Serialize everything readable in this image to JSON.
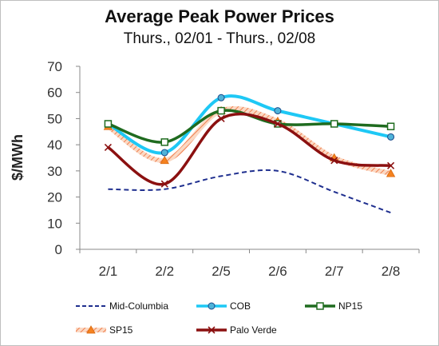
{
  "chart_data": {
    "type": "line",
    "title": "Average Peak Power Prices",
    "subtitle": "Thurs., 02/01 - Thurs., 02/08",
    "xlabel": "",
    "ylabel": "$/MWh",
    "categories": [
      "2/1",
      "2/2",
      "2/5",
      "2/6",
      "2/7",
      "2/8"
    ],
    "ylim": [
      0,
      70
    ],
    "yticks": [
      0,
      10,
      20,
      30,
      40,
      50,
      60,
      70
    ],
    "grid": false,
    "legend_position": "bottom",
    "series": [
      {
        "name": "Mid-Columbia",
        "values": [
          23,
          23,
          28,
          30,
          22,
          14
        ],
        "color": "#1f2f8f",
        "style": "dashed",
        "marker": "none"
      },
      {
        "name": "COB",
        "values": [
          48,
          37,
          58,
          53,
          48,
          43
        ],
        "color": "#1ec8f5",
        "style": "solid",
        "marker": "circle"
      },
      {
        "name": "NP15",
        "values": [
          48,
          41,
          53,
          48,
          48,
          47
        ],
        "color": "#1f6b1f",
        "style": "solid",
        "marker": "square"
      },
      {
        "name": "SP15",
        "values": [
          47,
          34,
          53,
          49,
          35,
          29
        ],
        "color": "#f2a070",
        "style": "hatched",
        "marker": "triangle"
      },
      {
        "name": "Palo Verde",
        "values": [
          39,
          25,
          50,
          48,
          34,
          32
        ],
        "color": "#8b1010",
        "style": "solid",
        "marker": "x"
      }
    ]
  }
}
